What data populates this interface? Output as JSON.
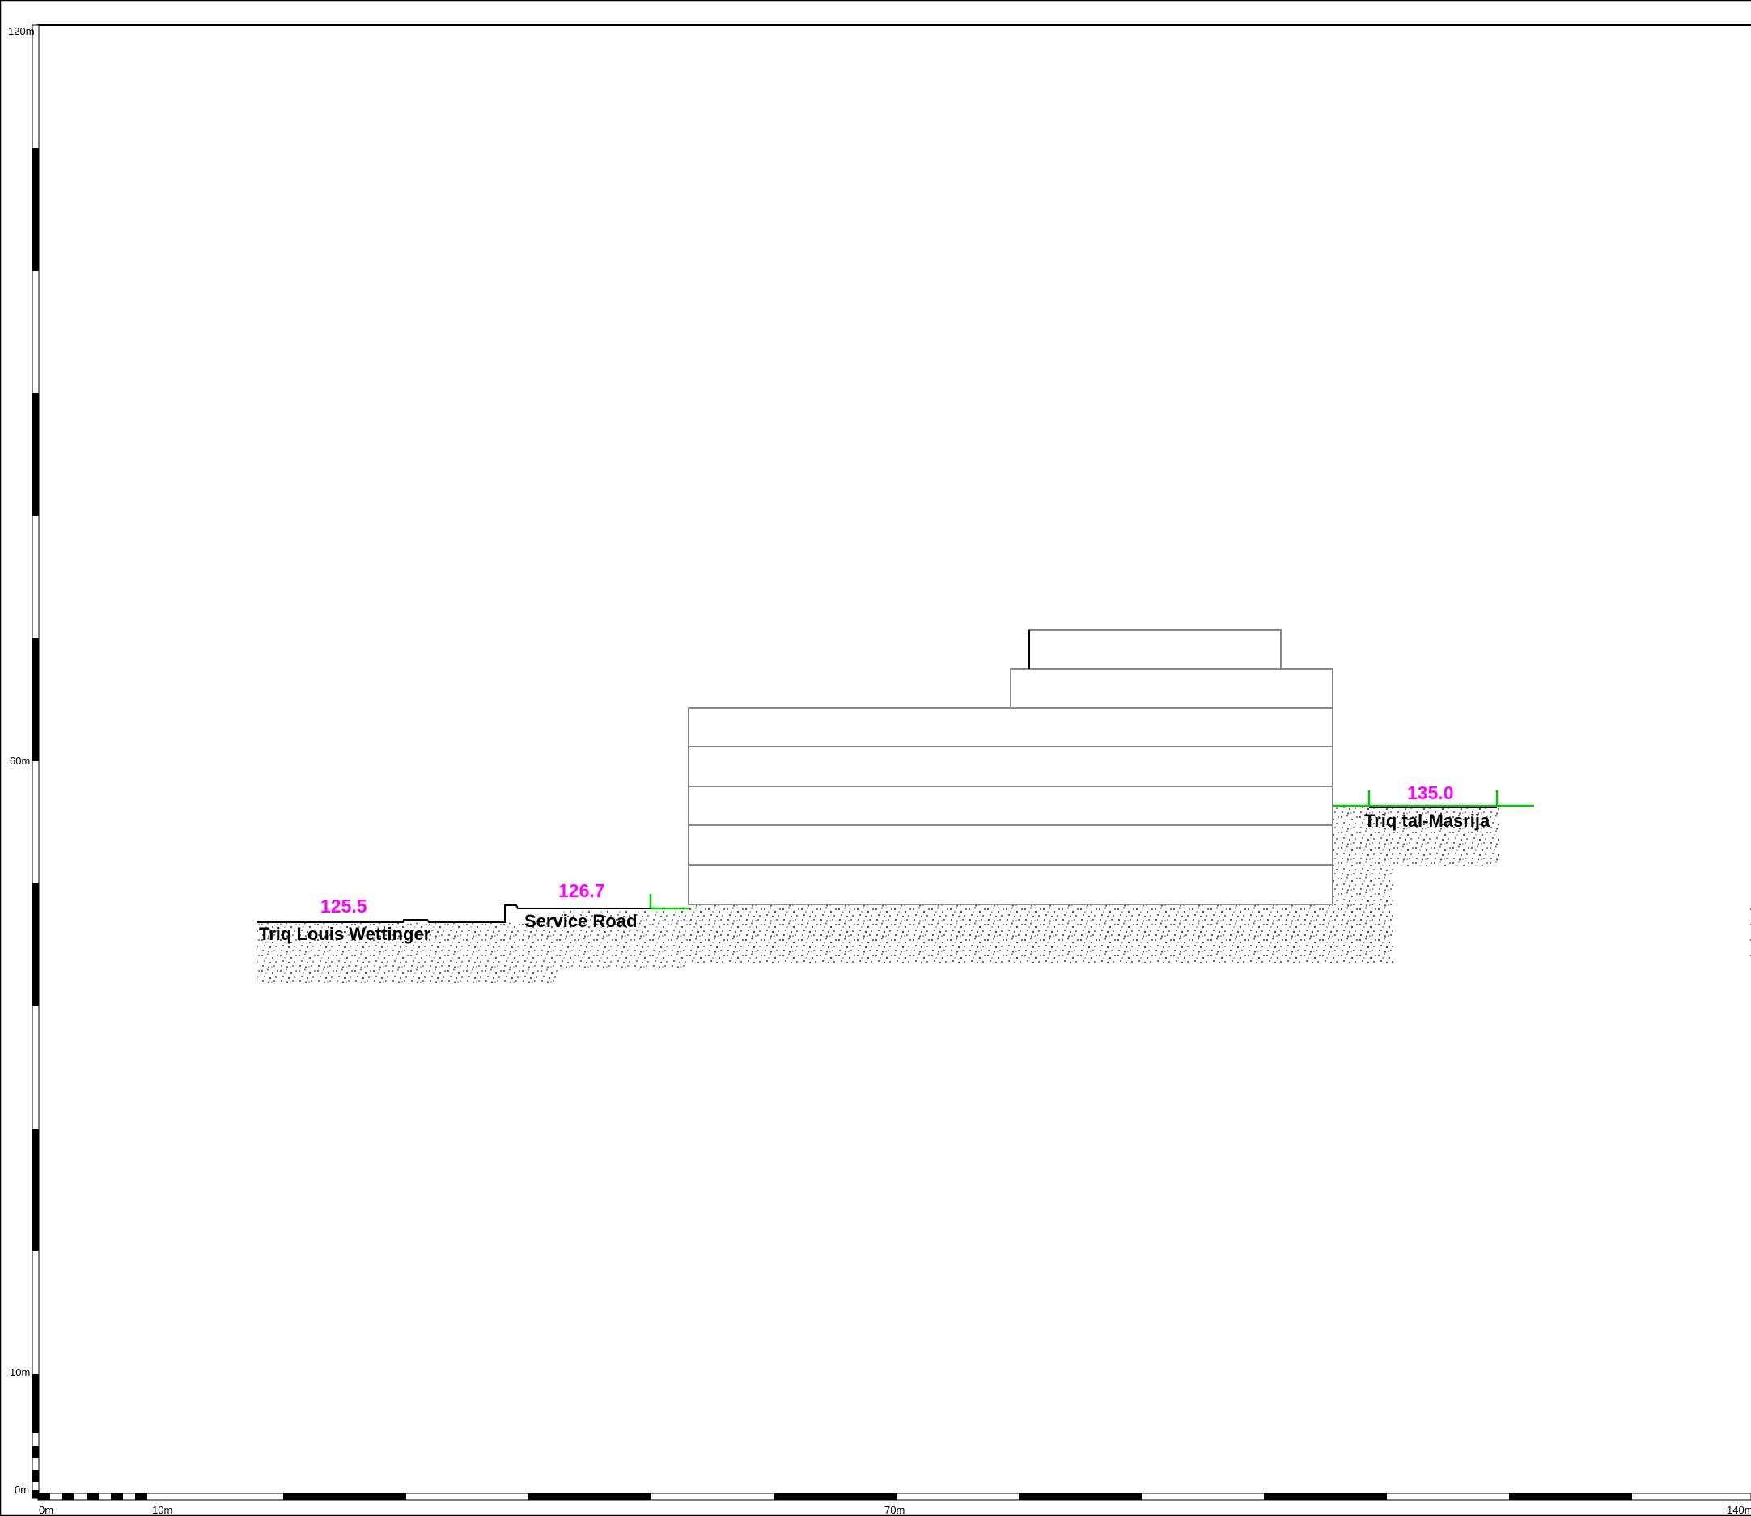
{
  "scale": {
    "vertical_labels": [
      {
        "text": "120m",
        "value": 120
      },
      {
        "text": "60m",
        "value": 60
      },
      {
        "text": "10m",
        "value": 10
      },
      {
        "text": "0m",
        "value": 0
      }
    ],
    "horizontal_labels": [
      {
        "text": "0m",
        "value": 0
      },
      {
        "text": "10m",
        "value": 10
      },
      {
        "text": "70m",
        "value": 70
      },
      {
        "text": "140m",
        "value": 140
      }
    ]
  },
  "levels": [
    {
      "text": "125.5",
      "color": "#ff00ff"
    },
    {
      "text": "126.7",
      "color": "#ff00ff"
    },
    {
      "text": "135.0",
      "color": "#ff00ff"
    }
  ],
  "roads": [
    {
      "text": "Triq Louis Wettinger"
    },
    {
      "text": "Service Road"
    },
    {
      "text": "Triq tal-Masrija"
    }
  ],
  "colors": {
    "level_marker": "#00cc00",
    "building_outline": "#8a8a8a",
    "ground_line": "#000000",
    "fill_dots": "#555555"
  }
}
